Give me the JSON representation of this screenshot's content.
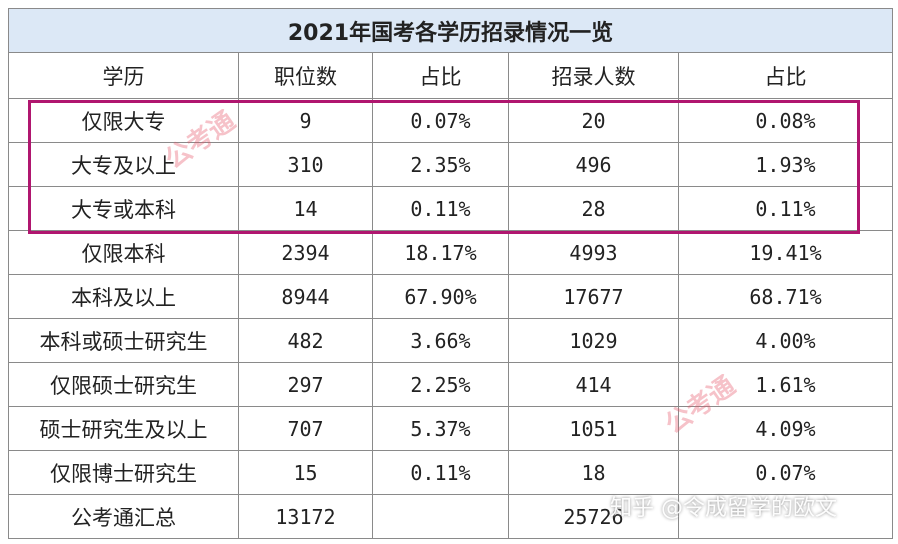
{
  "table": {
    "title": "2021年国考各学历招录情况一览",
    "columns": [
      "学历",
      "职位数",
      "占比",
      "招录人数",
      "占比"
    ],
    "rows": [
      [
        "仅限大专",
        "9",
        "0.07%",
        "20",
        "0.08%"
      ],
      [
        "大专及以上",
        "310",
        "2.35%",
        "496",
        "1.93%"
      ],
      [
        "大专或本科",
        "14",
        "0.11%",
        "28",
        "0.11%"
      ],
      [
        "仅限本科",
        "2394",
        "18.17%",
        "4993",
        "19.41%"
      ],
      [
        "本科及以上",
        "8944",
        "67.90%",
        "17677",
        "68.71%"
      ],
      [
        "本科或硕士研究生",
        "482",
        "3.66%",
        "1029",
        "4.00%"
      ],
      [
        "仅限硕士研究生",
        "297",
        "2.25%",
        "414",
        "1.61%"
      ],
      [
        "硕士研究生及以上",
        "707",
        "5.37%",
        "1051",
        "4.09%"
      ],
      [
        "仅限博士研究生",
        "15",
        "0.11%",
        "18",
        "0.07%"
      ],
      [
        "公考通汇总",
        "13172",
        null,
        "25726",
        null
      ]
    ]
  },
  "watermark": "知乎 @令成留学的欧文",
  "logo_watermark": "公考通"
}
